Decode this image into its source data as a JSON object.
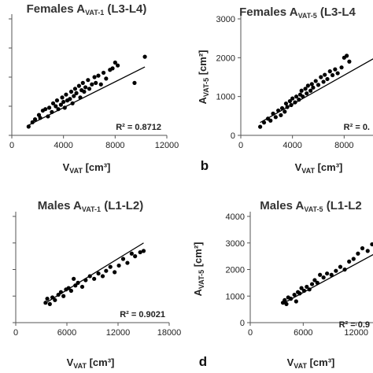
{
  "chart_data": [
    {
      "type": "scatter",
      "title_main": "Females A",
      "title_sub": "VAT-1",
      "title_tail": " (L3-L4)",
      "xlabel_main": "V",
      "xlabel_sub": "VAT",
      "xlabel_unit": " [cm³]",
      "xticks": [
        "0",
        "4000",
        "8000",
        "12000"
      ],
      "xlim": [
        0,
        12000
      ],
      "ylim": [
        0,
        400
      ],
      "annotation": "R² = 0.8712",
      "panel_letter": "",
      "points": [
        [
          1300,
          30
        ],
        [
          1600,
          45
        ],
        [
          1800,
          55
        ],
        [
          2100,
          70
        ],
        [
          2200,
          60
        ],
        [
          2400,
          85
        ],
        [
          2600,
          90
        ],
        [
          2800,
          65
        ],
        [
          2900,
          95
        ],
        [
          3100,
          80
        ],
        [
          3200,
          110
        ],
        [
          3400,
          100
        ],
        [
          3500,
          120
        ],
        [
          3600,
          90
        ],
        [
          3800,
          105
        ],
        [
          3900,
          130
        ],
        [
          4000,
          115
        ],
        [
          4100,
          95
        ],
        [
          4200,
          140
        ],
        [
          4300,
          120
        ],
        [
          4500,
          125
        ],
        [
          4600,
          150
        ],
        [
          4700,
          110
        ],
        [
          4800,
          135
        ],
        [
          4900,
          160
        ],
        [
          5000,
          145
        ],
        [
          5200,
          170
        ],
        [
          5300,
          130
        ],
        [
          5400,
          155
        ],
        [
          5500,
          180
        ],
        [
          5600,
          150
        ],
        [
          5700,
          165
        ],
        [
          5900,
          190
        ],
        [
          6000,
          160
        ],
        [
          6200,
          175
        ],
        [
          6400,
          200
        ],
        [
          6500,
          180
        ],
        [
          6700,
          205
        ],
        [
          6900,
          175
        ],
        [
          7100,
          215
        ],
        [
          7300,
          195
        ],
        [
          7600,
          225
        ],
        [
          7800,
          230
        ],
        [
          8000,
          250
        ],
        [
          8200,
          240
        ],
        [
          9500,
          180
        ],
        [
          10300,
          270
        ]
      ],
      "fit": [
        [
          1300,
          35
        ],
        [
          10300,
          235
        ]
      ]
    },
    {
      "type": "scatter",
      "title_main": "Females A",
      "title_sub": "VAT-5",
      "title_tail": " (L3-L4",
      "ylabel_main": "A",
      "ylabel_sub": "VAT-5",
      "ylabel_unit": " [cm²]",
      "xlabel_main": "V",
      "xlabel_sub": "VAT",
      "xlabel_unit": " [cm³]",
      "xticks": [
        "0",
        "4000",
        "8000"
      ],
      "yticks": [
        "0",
        "1000",
        "2000",
        "3000"
      ],
      "xlim": [
        0,
        12000
      ],
      "ylim": [
        0,
        3000
      ],
      "annotation": "R² = 0.",
      "panel_letter": "b",
      "points": [
        [
          1500,
          220
        ],
        [
          1800,
          330
        ],
        [
          2100,
          430
        ],
        [
          2300,
          380
        ],
        [
          2500,
          560
        ],
        [
          2700,
          470
        ],
        [
          2900,
          640
        ],
        [
          3100,
          520
        ],
        [
          3200,
          700
        ],
        [
          3400,
          610
        ],
        [
          3500,
          820
        ],
        [
          3600,
          730
        ],
        [
          3800,
          880
        ],
        [
          3900,
          780
        ],
        [
          4000,
          950
        ],
        [
          4200,
          850
        ],
        [
          4300,
          1000
        ],
        [
          4500,
          920
        ],
        [
          4600,
          1050
        ],
        [
          4700,
          1150
        ],
        [
          4800,
          1000
        ],
        [
          5000,
          1200
        ],
        [
          5100,
          1080
        ],
        [
          5200,
          1280
        ],
        [
          5400,
          1150
        ],
        [
          5500,
          1320
        ],
        [
          5600,
          1230
        ],
        [
          5800,
          1400
        ],
        [
          6000,
          1300
        ],
        [
          6200,
          1500
        ],
        [
          6400,
          1380
        ],
        [
          6500,
          1560
        ],
        [
          6700,
          1450
        ],
        [
          6900,
          1650
        ],
        [
          7100,
          1550
        ],
        [
          7300,
          1700
        ],
        [
          7500,
          1600
        ],
        [
          7800,
          1750
        ],
        [
          8000,
          2000
        ],
        [
          8200,
          2050
        ],
        [
          8400,
          1900
        ]
      ],
      "fit": [
        [
          1500,
          330
        ],
        [
          12000,
          2300
        ]
      ]
    },
    {
      "type": "scatter",
      "title_main": "Males A",
      "title_sub": "VAT-1",
      "title_tail": " (L1-L2)",
      "xlabel_main": "V",
      "xlabel_sub": "VAT",
      "xlabel_unit": " [cm³]",
      "xticks": [
        "0",
        "6000",
        "12000",
        "18000"
      ],
      "xlim": [
        0,
        18000
      ],
      "ylim": [
        0,
        400
      ],
      "annotation": "R² = 0.9021",
      "panel_letter": "",
      "points": [
        [
          3500,
          75
        ],
        [
          3700,
          90
        ],
        [
          4000,
          70
        ],
        [
          4300,
          95
        ],
        [
          4600,
          85
        ],
        [
          5000,
          105
        ],
        [
          5300,
          115
        ],
        [
          5600,
          100
        ],
        [
          5900,
          125
        ],
        [
          6200,
          130
        ],
        [
          6500,
          120
        ],
        [
          6800,
          165
        ],
        [
          7000,
          140
        ],
        [
          7300,
          150
        ],
        [
          7800,
          135
        ],
        [
          8200,
          160
        ],
        [
          8700,
          175
        ],
        [
          9200,
          165
        ],
        [
          9700,
          185
        ],
        [
          10200,
          175
        ],
        [
          10600,
          195
        ],
        [
          11100,
          210
        ],
        [
          11600,
          190
        ],
        [
          12100,
          215
        ],
        [
          12600,
          240
        ],
        [
          13100,
          225
        ],
        [
          13600,
          260
        ],
        [
          14000,
          250
        ],
        [
          14600,
          265
        ],
        [
          15000,
          270
        ]
      ],
      "fit": [
        [
          3300,
          70
        ],
        [
          15000,
          300
        ]
      ]
    },
    {
      "type": "scatter",
      "title_main": "Males A",
      "title_sub": "VAT-5",
      "title_tail": " (L1-L2",
      "ylabel_main": "A",
      "ylabel_sub": "VAT-5",
      "ylabel_unit": " [cm²]",
      "xlabel_main": "V",
      "xlabel_sub": "VAT",
      "xlabel_unit": " [cm³]",
      "xticks": [
        "0",
        "6000",
        "12000"
      ],
      "yticks": [
        "0",
        "1000",
        "2000",
        "3000",
        "4000"
      ],
      "xlim": [
        0,
        18000
      ],
      "ylim": [
        0,
        4000
      ],
      "annotation": "R² = 0.9",
      "panel_letter": "d",
      "points": [
        [
          3700,
          750
        ],
        [
          3900,
          850
        ],
        [
          4100,
          700
        ],
        [
          4300,
          950
        ],
        [
          4600,
          900
        ],
        [
          5000,
          1050
        ],
        [
          5200,
          800
        ],
        [
          5400,
          1150
        ],
        [
          5600,
          1100
        ],
        [
          5800,
          1300
        ],
        [
          6100,
          1200
        ],
        [
          6400,
          1350
        ],
        [
          6700,
          1250
        ],
        [
          7000,
          1450
        ],
        [
          7300,
          1600
        ],
        [
          7600,
          1500
        ],
        [
          7900,
          1800
        ],
        [
          8300,
          1700
        ],
        [
          8700,
          1850
        ],
        [
          9200,
          1800
        ],
        [
          9700,
          1950
        ],
        [
          10200,
          2100
        ],
        [
          10700,
          2000
        ],
        [
          11200,
          2300
        ],
        [
          11700,
          2400
        ],
        [
          12200,
          2600
        ],
        [
          12700,
          2800
        ],
        [
          13300,
          2700
        ],
        [
          13800,
          2950
        ],
        [
          14400,
          3000
        ],
        [
          15000,
          2600
        ],
        [
          17000,
          2500
        ]
      ],
      "fit": [
        [
          3700,
          720
        ],
        [
          17000,
          3120
        ]
      ]
    }
  ]
}
